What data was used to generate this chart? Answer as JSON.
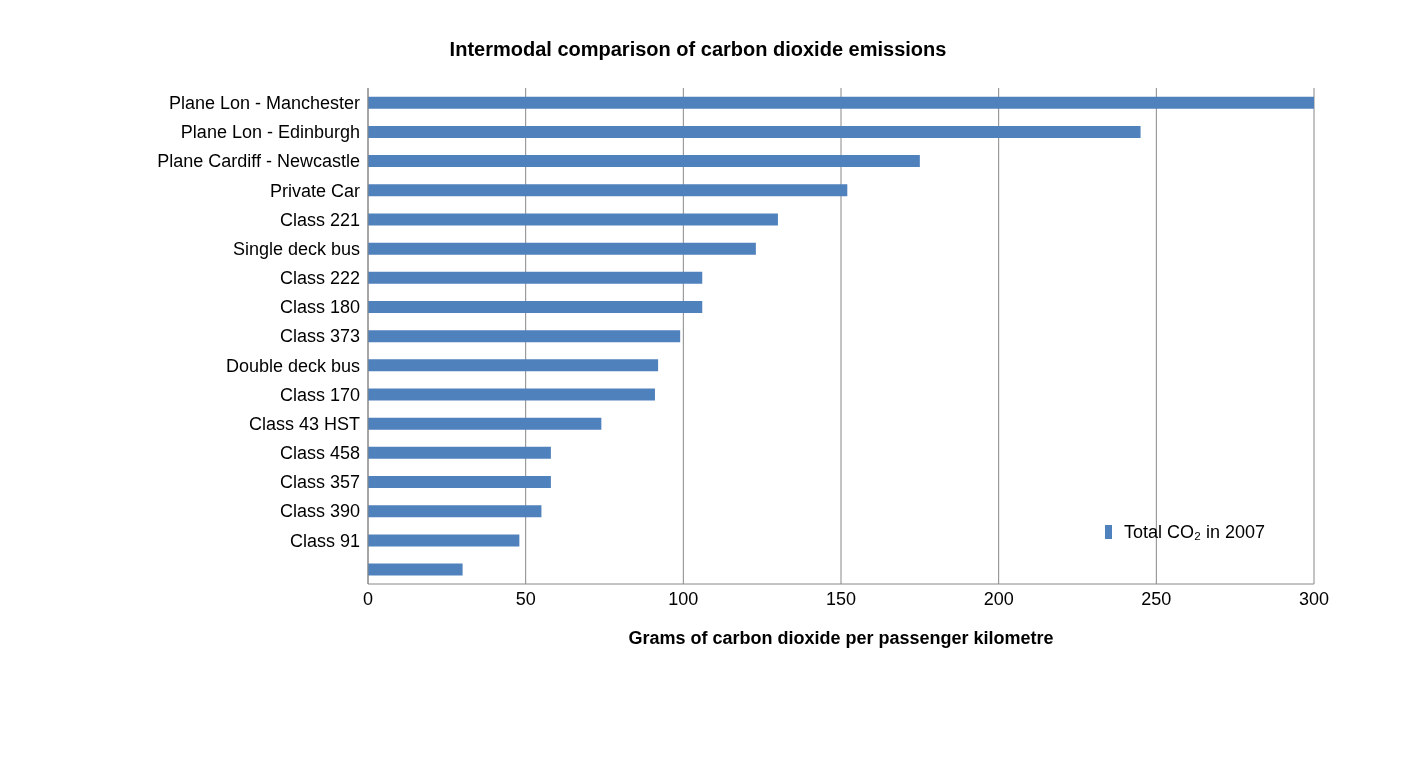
{
  "chart_data": {
    "type": "bar",
    "orientation": "horizontal",
    "title": "Intermodal comparison of carbon dioxide emissions",
    "xlabel": "Grams of carbon dioxide per passenger kilometre",
    "categories": [
      "Plane Lon - Manchester",
      "Plane Lon - Edinburgh",
      "Plane Cardiff - Newcastle",
      "Private Car",
      "Class 221",
      "Single deck bus",
      "Class 222",
      "Class 180",
      "Class 373",
      "Double deck bus",
      "Class 170",
      "Class 43 HST",
      "Class 458",
      "Class 357",
      "Class 390",
      "Class 91",
      null
    ],
    "series": [
      {
        "name": "Total CO₂ in 2007",
        "color": "#4f81bd",
        "values": [
          300,
          245,
          175,
          152,
          130,
          123,
          106,
          106,
          99,
          92,
          91,
          74,
          58,
          58,
          55,
          48,
          30
        ]
      }
    ],
    "xlim": [
      0,
      300
    ],
    "xticks": [
      0,
      50,
      100,
      150,
      200,
      250,
      300
    ],
    "grid": "x",
    "legend": "bottom right"
  }
}
